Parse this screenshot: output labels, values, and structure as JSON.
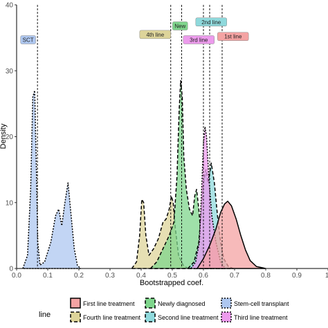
{
  "chart_data": {
    "type": "area",
    "subtype": "density",
    "title": "",
    "xlabel": "Bootstrapped coef.",
    "ylabel": "Density",
    "xlim": [
      0,
      1.0
    ],
    "ylim": [
      0,
      40
    ],
    "x_ticks": [
      0,
      0.1,
      0.2,
      0.3,
      0.4,
      0.5,
      0.6,
      0.7,
      0.8,
      0.9,
      1.0
    ],
    "x_tick_labels": [
      "0.0",
      "0.1",
      "0.2",
      "0.3",
      "0.4",
      "0.5",
      "0.6",
      "0.7",
      "0.8",
      "0.9",
      "1."
    ],
    "y_ticks": [
      0,
      10,
      20,
      30,
      40
    ],
    "grid": false,
    "legend": {
      "title": "line",
      "position": "bottom"
    },
    "series": [
      {
        "name": "Stem-cell transplant",
        "color": "#aec7f0",
        "border": "dotted",
        "points": [
          [
            0.02,
            0
          ],
          [
            0.035,
            2
          ],
          [
            0.045,
            12
          ],
          [
            0.052,
            26
          ],
          [
            0.058,
            27
          ],
          [
            0.063,
            16
          ],
          [
            0.068,
            4
          ],
          [
            0.075,
            0.5
          ],
          [
            0.09,
            1
          ],
          [
            0.11,
            4
          ],
          [
            0.125,
            8
          ],
          [
            0.135,
            9
          ],
          [
            0.145,
            6.5
          ],
          [
            0.155,
            10
          ],
          [
            0.165,
            13
          ],
          [
            0.175,
            8
          ],
          [
            0.185,
            3
          ],
          [
            0.195,
            0.5
          ],
          [
            0.205,
            0
          ]
        ]
      },
      {
        "name": "Fourth line treatment",
        "color": "#ddd49a",
        "border": "dashed",
        "points": [
          [
            0.37,
            0
          ],
          [
            0.385,
            1
          ],
          [
            0.395,
            5
          ],
          [
            0.402,
            10.5
          ],
          [
            0.408,
            10
          ],
          [
            0.415,
            5
          ],
          [
            0.425,
            2
          ],
          [
            0.44,
            3
          ],
          [
            0.455,
            4.5
          ],
          [
            0.47,
            7
          ],
          [
            0.48,
            7.5
          ],
          [
            0.49,
            9
          ],
          [
            0.497,
            11
          ],
          [
            0.503,
            10
          ],
          [
            0.51,
            6
          ],
          [
            0.52,
            2
          ],
          [
            0.535,
            0.5
          ],
          [
            0.55,
            0
          ]
        ]
      },
      {
        "name": "Newly diagnosed",
        "color": "#7fd58c",
        "border": "dashed",
        "points": [
          [
            0.43,
            0
          ],
          [
            0.45,
            1
          ],
          [
            0.47,
            3
          ],
          [
            0.49,
            5
          ],
          [
            0.505,
            7
          ],
          [
            0.515,
            14
          ],
          [
            0.522,
            24
          ],
          [
            0.527,
            28.5
          ],
          [
            0.532,
            26
          ],
          [
            0.537,
            17
          ],
          [
            0.545,
            12
          ],
          [
            0.555,
            9
          ],
          [
            0.565,
            8
          ],
          [
            0.572,
            11
          ],
          [
            0.578,
            12
          ],
          [
            0.585,
            9
          ],
          [
            0.595,
            3
          ],
          [
            0.61,
            0.5
          ],
          [
            0.625,
            0
          ]
        ]
      },
      {
        "name": "Second line treatment",
        "color": "#8fd9dc",
        "border": "dashed",
        "points": [
          [
            0.55,
            0
          ],
          [
            0.57,
            1
          ],
          [
            0.585,
            4
          ],
          [
            0.6,
            13
          ],
          [
            0.608,
            15
          ],
          [
            0.615,
            13
          ],
          [
            0.625,
            16
          ],
          [
            0.635,
            13
          ],
          [
            0.645,
            8
          ],
          [
            0.655,
            4
          ],
          [
            0.665,
            1.5
          ],
          [
            0.68,
            0.3
          ],
          [
            0.695,
            0
          ]
        ]
      },
      {
        "name": "Third line treatment",
        "color": "#ec9bec",
        "border": "dotted",
        "points": [
          [
            0.56,
            0
          ],
          [
            0.575,
            1
          ],
          [
            0.587,
            4
          ],
          [
            0.595,
            13
          ],
          [
            0.6,
            19
          ],
          [
            0.605,
            21.5
          ],
          [
            0.61,
            20
          ],
          [
            0.617,
            14
          ],
          [
            0.627,
            8
          ],
          [
            0.64,
            4
          ],
          [
            0.655,
            1
          ],
          [
            0.67,
            0
          ]
        ]
      },
      {
        "name": "First line treatment",
        "color": "#f4a3a3",
        "border": "solid",
        "points": [
          [
            0.58,
            0
          ],
          [
            0.6,
            1.5
          ],
          [
            0.62,
            3.5
          ],
          [
            0.64,
            6
          ],
          [
            0.655,
            8.5
          ],
          [
            0.668,
            9.8
          ],
          [
            0.678,
            10.2
          ],
          [
            0.69,
            9.5
          ],
          [
            0.705,
            7.5
          ],
          [
            0.72,
            5
          ],
          [
            0.735,
            2.8
          ],
          [
            0.75,
            1.2
          ],
          [
            0.77,
            0.3
          ],
          [
            0.8,
            0
          ]
        ]
      }
    ],
    "vlines": [
      0.067,
      0.495,
      0.53,
      0.6,
      0.62,
      0.66
    ],
    "annotations": [
      {
        "label": "SCT",
        "x": 0.037,
        "y": 34.7,
        "series": "Stem-cell transplant"
      },
      {
        "label": "4th line",
        "x": 0.445,
        "y": 35.5,
        "series": "Fourth line treatment"
      },
      {
        "label": "New",
        "x": 0.525,
        "y": 36.8,
        "series": "Newly diagnosed"
      },
      {
        "label": "3rd line",
        "x": 0.585,
        "y": 34.7,
        "series": "Third line treatment"
      },
      {
        "label": "2nd line",
        "x": 0.625,
        "y": 37.4,
        "series": "Second line treatment"
      },
      {
        "label": "1st line",
        "x": 0.695,
        "y": 35.2,
        "series": "First line treatment"
      }
    ]
  }
}
